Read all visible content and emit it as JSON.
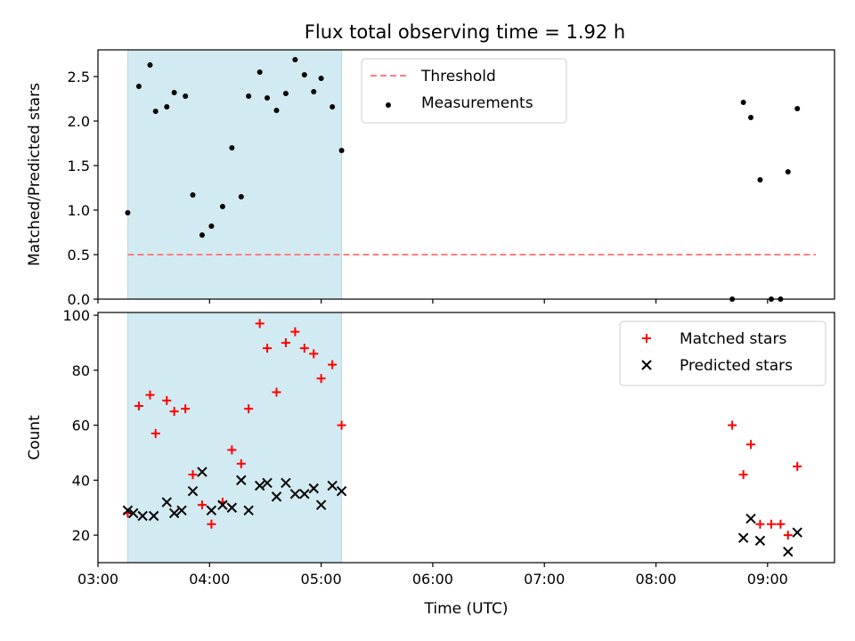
{
  "figure": {
    "title": "Flux total observing time = 1.92 h"
  },
  "chart_data": [
    {
      "type": "scatter",
      "ylabel": "Matched/Predicted stars",
      "xlim": [
        "03:00",
        "09:36"
      ],
      "ylim": [
        0,
        2.8
      ],
      "yticks": [
        0.0,
        0.5,
        1.0,
        1.5,
        2.0,
        2.5
      ],
      "ytick_labels": [
        "0.0",
        "0.5",
        "1.0",
        "1.5",
        "2.0",
        "2.5"
      ],
      "grid": false,
      "legend_position": "upper-center",
      "shaded_span": {
        "start": "03:16",
        "end": "05:11",
        "color": "#add8e6"
      },
      "threshold": {
        "name": "Threshold",
        "value": 0.5,
        "start": "03:16",
        "end": "09:26",
        "color": "#ff7f7f"
      },
      "series": [
        {
          "name": "Measurements",
          "marker": "dot",
          "color": "#000000",
          "points": [
            [
              "03:16",
              0.97
            ],
            [
              "03:22",
              2.39
            ],
            [
              "03:28",
              2.63
            ],
            [
              "03:31",
              2.11
            ],
            [
              "03:37",
              2.16
            ],
            [
              "03:41",
              2.32
            ],
            [
              "03:47",
              2.28
            ],
            [
              "03:51",
              1.17
            ],
            [
              "03:56",
              0.72
            ],
            [
              "04:01",
              0.82
            ],
            [
              "04:07",
              1.04
            ],
            [
              "04:12",
              1.7
            ],
            [
              "04:17",
              1.15
            ],
            [
              "04:21",
              2.28
            ],
            [
              "04:27",
              2.55
            ],
            [
              "04:31",
              2.26
            ],
            [
              "04:36",
              2.12
            ],
            [
              "04:41",
              2.31
            ],
            [
              "04:46",
              2.69
            ],
            [
              "04:51",
              2.52
            ],
            [
              "04:56",
              2.33
            ],
            [
              "05:00",
              2.48
            ],
            [
              "05:06",
              2.16
            ],
            [
              "05:11",
              1.67
            ],
            [
              "08:41",
              0.0
            ],
            [
              "08:47",
              2.21
            ],
            [
              "08:51",
              2.04
            ],
            [
              "08:56",
              1.34
            ],
            [
              "09:02",
              0.0
            ],
            [
              "09:07",
              0.0
            ],
            [
              "09:11",
              1.43
            ],
            [
              "09:16",
              2.14
            ]
          ]
        }
      ]
    },
    {
      "type": "scatter",
      "xlabel": "Time (UTC)",
      "ylabel": "Count",
      "xlim": [
        "03:00",
        "09:36"
      ],
      "ylim": [
        10,
        101
      ],
      "xticks": [
        "03:00",
        "04:00",
        "05:00",
        "06:00",
        "07:00",
        "08:00",
        "09:00"
      ],
      "yticks": [
        20,
        40,
        60,
        80,
        100
      ],
      "ytick_labels": [
        "20",
        "40",
        "60",
        "80",
        "100"
      ],
      "grid": false,
      "legend_position": "upper-right",
      "shaded_span": {
        "start": "03:16",
        "end": "05:11",
        "color": "#add8e6"
      },
      "series": [
        {
          "name": "Matched stars",
          "marker": "plus",
          "color": "#ff0000",
          "points": [
            [
              "03:16",
              28
            ],
            [
              "03:22",
              67
            ],
            [
              "03:28",
              71
            ],
            [
              "03:31",
              57
            ],
            [
              "03:37",
              69
            ],
            [
              "03:41",
              65
            ],
            [
              "03:47",
              66
            ],
            [
              "03:51",
              42
            ],
            [
              "03:56",
              31
            ],
            [
              "04:01",
              24
            ],
            [
              "04:07",
              32
            ],
            [
              "04:12",
              51
            ],
            [
              "04:17",
              46
            ],
            [
              "04:21",
              66
            ],
            [
              "04:27",
              97
            ],
            [
              "04:31",
              88
            ],
            [
              "04:36",
              72
            ],
            [
              "04:41",
              90
            ],
            [
              "04:46",
              94
            ],
            [
              "04:51",
              88
            ],
            [
              "04:56",
              86
            ],
            [
              "05:00",
              77
            ],
            [
              "05:06",
              82
            ],
            [
              "05:11",
              60
            ],
            [
              "08:41",
              60
            ],
            [
              "08:47",
              42
            ],
            [
              "08:51",
              53
            ],
            [
              "08:56",
              24
            ],
            [
              "09:02",
              24
            ],
            [
              "09:07",
              24
            ],
            [
              "09:11",
              20
            ],
            [
              "09:16",
              45
            ]
          ]
        },
        {
          "name": "Predicted stars",
          "marker": "x",
          "color": "#000000",
          "points": [
            [
              "03:16",
              29
            ],
            [
              "03:19",
              28
            ],
            [
              "03:24",
              27
            ],
            [
              "03:30",
              27
            ],
            [
              "03:37",
              32
            ],
            [
              "03:41",
              28
            ],
            [
              "03:45",
              29
            ],
            [
              "03:51",
              36
            ],
            [
              "03:56",
              43
            ],
            [
              "04:01",
              29
            ],
            [
              "04:07",
              31
            ],
            [
              "04:12",
              30
            ],
            [
              "04:17",
              40
            ],
            [
              "04:21",
              29
            ],
            [
              "04:27",
              38
            ],
            [
              "04:31",
              39
            ],
            [
              "04:36",
              34
            ],
            [
              "04:41",
              39
            ],
            [
              "04:46",
              35
            ],
            [
              "04:51",
              35
            ],
            [
              "04:56",
              37
            ],
            [
              "05:00",
              31
            ],
            [
              "05:06",
              38
            ],
            [
              "05:11",
              36
            ],
            [
              "08:47",
              19
            ],
            [
              "08:51",
              26
            ],
            [
              "08:56",
              18
            ],
            [
              "09:11",
              14
            ],
            [
              "09:16",
              21
            ]
          ]
        }
      ]
    }
  ]
}
